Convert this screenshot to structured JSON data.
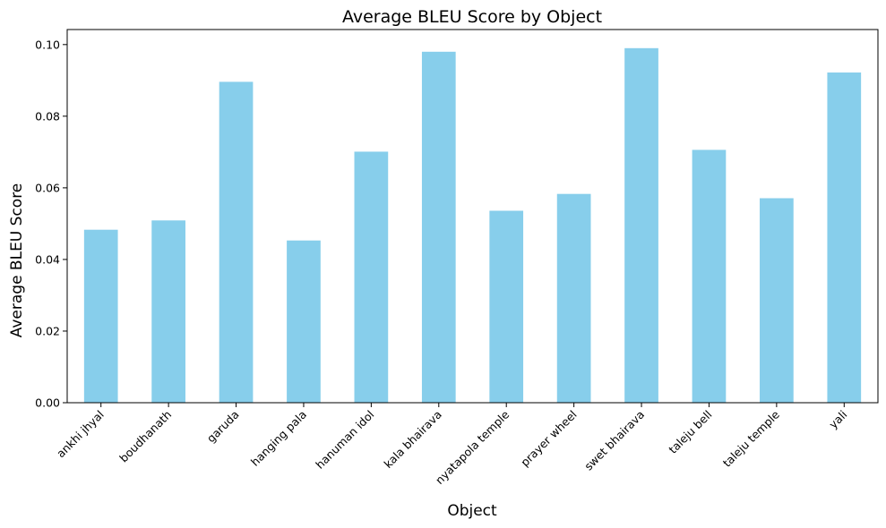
{
  "chart_data": {
    "type": "bar",
    "title": "Average BLEU Score by Object",
    "xlabel": "Object",
    "ylabel": "Average BLEU Score",
    "categories": [
      "ankhi jhyal",
      "boudhanath",
      "garuda",
      "hanging pala",
      "hanuman idol",
      "kala bhairava",
      "nyatapola temple",
      "prayer wheel",
      "swet bhairava",
      "taleju bell",
      "taleju temple",
      "yali"
    ],
    "values": [
      0.0483,
      0.0509,
      0.0896,
      0.0453,
      0.0701,
      0.098,
      0.0536,
      0.0583,
      0.099,
      0.0706,
      0.0571,
      0.0922
    ],
    "ylim": [
      0,
      0.1042
    ],
    "yticks": [
      "0.00",
      "0.02",
      "0.04",
      "0.06",
      "0.08",
      "0.10"
    ],
    "grid": false,
    "bar_color": "#87CEEB"
  }
}
